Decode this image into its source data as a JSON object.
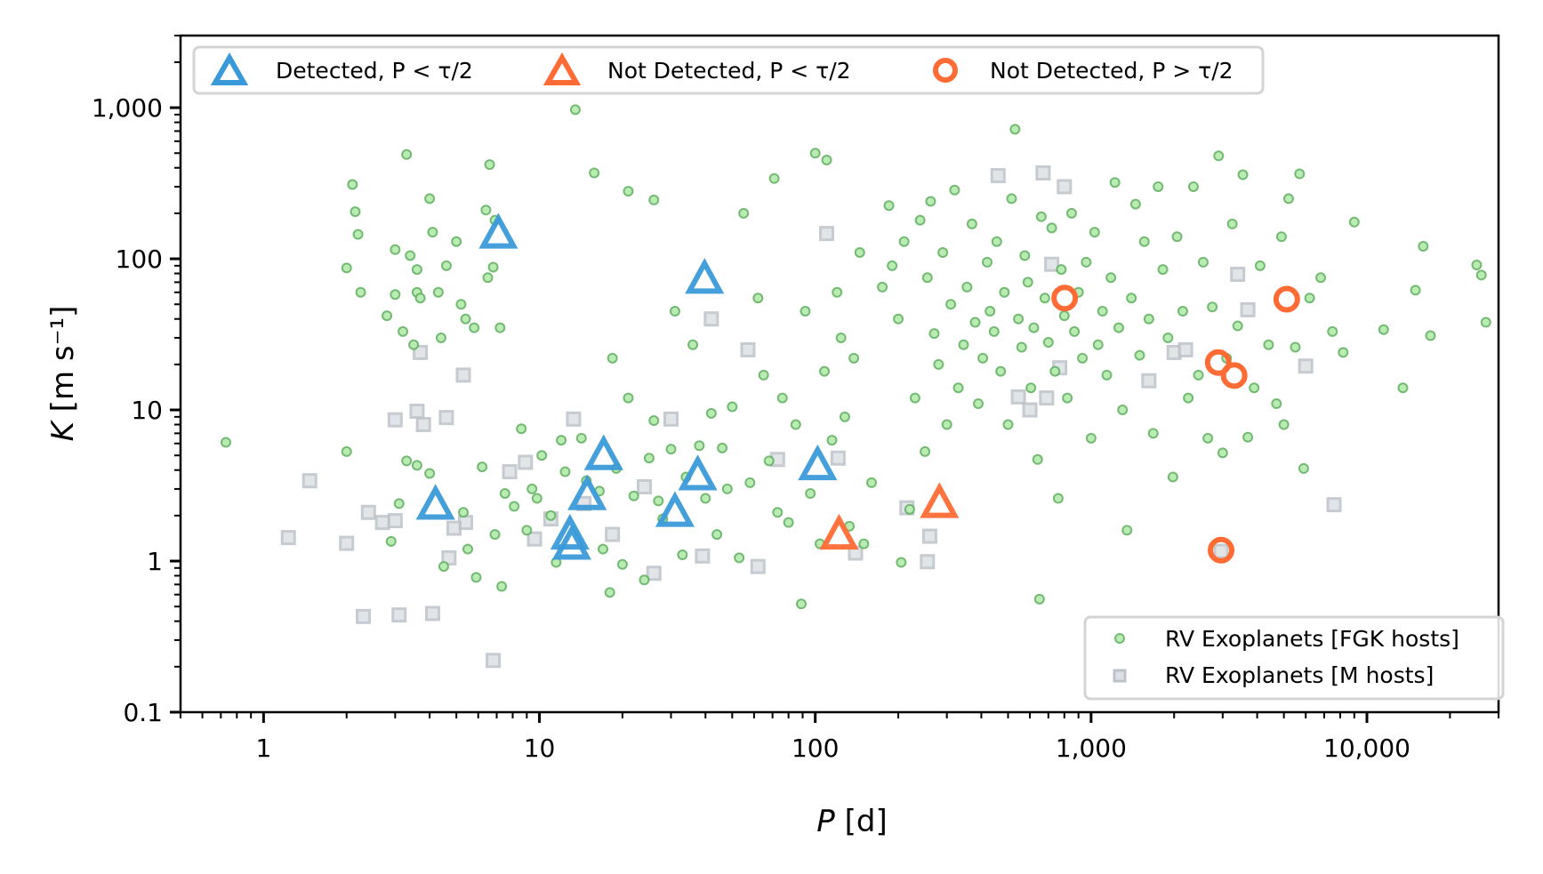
{
  "chart_data": {
    "type": "scatter",
    "title": "",
    "xlabel": "P [d]",
    "ylabel": "K [m s⁻¹]",
    "xscale": "log",
    "yscale": "log",
    "xlim": [
      0.5,
      30000
    ],
    "ylim": [
      0.1,
      3000
    ],
    "x_ticks": [
      {
        "value": 1,
        "label": "1"
      },
      {
        "value": 10,
        "label": "10"
      },
      {
        "value": 100,
        "label": "100"
      },
      {
        "value": 1000,
        "label": "1,000"
      },
      {
        "value": 10000,
        "label": "10,000"
      }
    ],
    "y_ticks": [
      {
        "value": 0.1,
        "label": "0.1"
      },
      {
        "value": 1,
        "label": "1"
      },
      {
        "value": 10,
        "label": "10"
      },
      {
        "value": 100,
        "label": "100"
      },
      {
        "value": 1000,
        "label": "1,000"
      }
    ],
    "grid": false,
    "legends": [
      {
        "placement": "top",
        "entries": [
          "Detected, P < τ/2",
          "Not Detected, P < τ/2",
          "Not Detected, P > τ/2"
        ]
      },
      {
        "placement": "lower-right",
        "entries": [
          "RV Exoplanets [FGK hosts]",
          "RV Exoplanets [M hosts]"
        ]
      }
    ],
    "colors": {
      "fgk_fill": "#b9ecb3",
      "fgk_edge": "#5aaa5a",
      "m_fill": "#cdd2d7",
      "m_edge": "#a9b0b7",
      "detected": "#3a9ad9",
      "not_detected": "#ff6b35"
    },
    "series": [
      {
        "name": "RV Exoplanets [FGK hosts]",
        "marker": "circle",
        "points": [
          [
            0.73,
            6.1
          ],
          [
            2.0,
            87
          ],
          [
            2.1,
            310
          ],
          [
            2.15,
            205
          ],
          [
            2.2,
            145
          ],
          [
            2.25,
            60
          ],
          [
            2.8,
            42
          ],
          [
            3.0,
            58
          ],
          [
            3.0,
            115
          ],
          [
            3.3,
            490
          ],
          [
            3.4,
            105
          ],
          [
            3.6,
            85
          ],
          [
            3.6,
            60
          ],
          [
            3.7,
            55
          ],
          [
            4.0,
            250
          ],
          [
            4.1,
            150
          ],
          [
            4.3,
            60
          ],
          [
            4.6,
            90
          ],
          [
            5.0,
            130
          ],
          [
            5.2,
            50
          ],
          [
            5.4,
            40
          ],
          [
            5.8,
            35
          ],
          [
            6.6,
            420
          ],
          [
            6.4,
            210
          ],
          [
            6.9,
            180
          ],
          [
            6.5,
            75
          ],
          [
            6.8,
            88
          ],
          [
            7.2,
            35
          ],
          [
            3.2,
            33
          ],
          [
            3.5,
            27
          ],
          [
            4.4,
            30
          ],
          [
            2.0,
            5.3
          ],
          [
            2.9,
            1.35
          ],
          [
            3.1,
            2.4
          ],
          [
            3.3,
            4.6
          ],
          [
            3.6,
            4.3
          ],
          [
            4.0,
            3.8
          ],
          [
            4.5,
            0.92
          ],
          [
            5.3,
            2.1
          ],
          [
            5.5,
            1.2
          ],
          [
            5.9,
            0.78
          ],
          [
            6.2,
            4.2
          ],
          [
            6.9,
            1.5
          ],
          [
            7.3,
            0.68
          ],
          [
            7.5,
            2.8
          ],
          [
            8.1,
            2.3
          ],
          [
            8.6,
            7.5
          ],
          [
            9.0,
            1.6
          ],
          [
            9.4,
            3.0
          ],
          [
            9.8,
            2.6
          ],
          [
            10.2,
            5.0
          ],
          [
            11.0,
            2.0
          ],
          [
            11.5,
            0.98
          ],
          [
            12.0,
            6.3
          ],
          [
            12.4,
            3.9
          ],
          [
            13.5,
            970
          ],
          [
            14.2,
            6.5
          ],
          [
            14.8,
            3.4
          ],
          [
            15.8,
            370
          ],
          [
            16.5,
            2.9
          ],
          [
            17.0,
            1.2
          ],
          [
            18.0,
            0.62
          ],
          [
            18.4,
            22
          ],
          [
            19.0,
            4.1
          ],
          [
            20.0,
            0.95
          ],
          [
            21,
            280
          ],
          [
            21,
            12
          ],
          [
            22,
            2.7
          ],
          [
            24,
            0.75
          ],
          [
            25,
            4.8
          ],
          [
            26,
            245
          ],
          [
            26,
            8.5
          ],
          [
            27,
            2.5
          ],
          [
            28,
            1.9
          ],
          [
            30,
            5.5
          ],
          [
            31,
            45
          ],
          [
            33,
            1.1
          ],
          [
            34,
            3.6
          ],
          [
            36,
            27
          ],
          [
            38,
            5.8
          ],
          [
            40,
            2.6
          ],
          [
            42,
            9.5
          ],
          [
            44,
            1.5
          ],
          [
            46,
            5.6
          ],
          [
            48,
            3.0
          ],
          [
            50,
            10.5
          ],
          [
            53,
            1.05
          ],
          [
            55,
            200
          ],
          [
            58,
            3.3
          ],
          [
            62,
            55
          ],
          [
            65,
            17
          ],
          [
            68,
            4.6
          ],
          [
            71,
            340
          ],
          [
            73,
            2.1
          ],
          [
            76,
            12
          ],
          [
            80,
            1.8
          ],
          [
            85,
            8
          ],
          [
            89,
            0.52
          ],
          [
            92,
            45
          ],
          [
            96,
            2.8
          ],
          [
            100,
            500
          ],
          [
            104,
            1.3
          ],
          [
            108,
            18
          ],
          [
            110,
            450
          ],
          [
            115,
            6.3
          ],
          [
            120,
            60
          ],
          [
            124,
            30
          ],
          [
            128,
            9
          ],
          [
            133,
            1.7
          ],
          [
            138,
            22
          ],
          [
            145,
            110
          ],
          [
            150,
            1.3
          ],
          [
            160,
            3.3
          ],
          [
            175,
            65
          ],
          [
            185,
            225
          ],
          [
            190,
            90
          ],
          [
            200,
            40
          ],
          [
            205,
            0.98
          ],
          [
            210,
            130
          ],
          [
            220,
            2.2
          ],
          [
            230,
            12
          ],
          [
            240,
            180
          ],
          [
            250,
            5.3
          ],
          [
            255,
            75
          ],
          [
            262,
            240
          ],
          [
            270,
            32
          ],
          [
            280,
            20
          ],
          [
            290,
            110
          ],
          [
            300,
            8
          ],
          [
            310,
            50
          ],
          [
            320,
            285
          ],
          [
            330,
            14
          ],
          [
            345,
            27
          ],
          [
            355,
            65
          ],
          [
            370,
            170
          ],
          [
            380,
            38
          ],
          [
            390,
            11
          ],
          [
            405,
            22
          ],
          [
            420,
            95
          ],
          [
            430,
            45
          ],
          [
            445,
            33
          ],
          [
            455,
            130
          ],
          [
            470,
            18
          ],
          [
            485,
            60
          ],
          [
            500,
            8
          ],
          [
            515,
            250
          ],
          [
            530,
            720
          ],
          [
            545,
            40
          ],
          [
            560,
            26
          ],
          [
            575,
            105
          ],
          [
            590,
            70
          ],
          [
            605,
            14
          ],
          [
            620,
            35
          ],
          [
            640,
            4.7
          ],
          [
            650,
            0.56
          ],
          [
            660,
            190
          ],
          [
            680,
            55
          ],
          [
            700,
            28
          ],
          [
            720,
            160
          ],
          [
            740,
            18
          ],
          [
            760,
            2.6
          ],
          [
            780,
            85
          ],
          [
            800,
            42
          ],
          [
            820,
            12
          ],
          [
            850,
            200
          ],
          [
            870,
            33
          ],
          [
            900,
            60
          ],
          [
            930,
            22
          ],
          [
            960,
            95
          ],
          [
            1000,
            6.5
          ],
          [
            1030,
            150
          ],
          [
            1060,
            27
          ],
          [
            1100,
            45
          ],
          [
            1140,
            17
          ],
          [
            1180,
            75
          ],
          [
            1220,
            320
          ],
          [
            1260,
            35
          ],
          [
            1300,
            10
          ],
          [
            1350,
            1.6
          ],
          [
            1400,
            55
          ],
          [
            1450,
            230
          ],
          [
            1500,
            23
          ],
          [
            1560,
            130
          ],
          [
            1620,
            40
          ],
          [
            1680,
            7
          ],
          [
            1750,
            300
          ],
          [
            1820,
            85
          ],
          [
            1900,
            30
          ],
          [
            1980,
            3.6
          ],
          [
            2050,
            140
          ],
          [
            2150,
            45
          ],
          [
            2250,
            12
          ],
          [
            2350,
            300
          ],
          [
            2450,
            17
          ],
          [
            2550,
            95
          ],
          [
            2650,
            6.5
          ],
          [
            2750,
            48
          ],
          [
            2900,
            480
          ],
          [
            3000,
            5.2
          ],
          [
            3100,
            22
          ],
          [
            3250,
            170
          ],
          [
            3400,
            36
          ],
          [
            3550,
            360
          ],
          [
            3700,
            6.6
          ],
          [
            3900,
            14
          ],
          [
            4100,
            90
          ],
          [
            4400,
            27
          ],
          [
            4700,
            11
          ],
          [
            4900,
            140
          ],
          [
            5000,
            8
          ],
          [
            5200,
            250
          ],
          [
            5500,
            26
          ],
          [
            5700,
            365
          ],
          [
            5900,
            4.1
          ],
          [
            6200,
            55
          ],
          [
            6800,
            75
          ],
          [
            7500,
            33
          ],
          [
            8200,
            24
          ],
          [
            9000,
            175
          ],
          [
            11500,
            34
          ],
          [
            13500,
            14
          ],
          [
            15000,
            62
          ],
          [
            16000,
            121
          ],
          [
            17000,
            31
          ],
          [
            25000,
            91
          ],
          [
            26000,
            78
          ],
          [
            27000,
            38
          ]
        ]
      },
      {
        "name": "RV Exoplanets [M hosts]",
        "marker": "square",
        "points": [
          [
            1.23,
            1.43
          ],
          [
            1.47,
            3.4
          ],
          [
            2.0,
            1.31
          ],
          [
            2.3,
            0.43
          ],
          [
            3.1,
            0.44
          ],
          [
            4.1,
            0.45
          ],
          [
            6.8,
            0.22
          ],
          [
            2.4,
            2.1
          ],
          [
            2.7,
            1.8
          ],
          [
            3.0,
            1.85
          ],
          [
            3.0,
            8.6
          ],
          [
            3.7,
            24
          ],
          [
            3.6,
            9.8
          ],
          [
            3.8,
            8
          ],
          [
            4.6,
            8.9
          ],
          [
            5.3,
            17
          ],
          [
            4.7,
            1.05
          ],
          [
            7.8,
            3.9
          ],
          [
            8.9,
            4.5
          ],
          [
            9.6,
            1.4
          ],
          [
            11,
            1.9
          ],
          [
            13.3,
            8.7
          ],
          [
            14.5,
            2.4
          ],
          [
            18.4,
            1.5
          ],
          [
            30,
            8.7
          ],
          [
            42,
            40
          ],
          [
            39,
            1.08
          ],
          [
            57,
            25
          ],
          [
            62,
            0.92
          ],
          [
            73,
            4.7
          ],
          [
            110,
            147
          ],
          [
            121,
            4.8
          ],
          [
            140,
            1.13
          ],
          [
            215,
            2.25
          ],
          [
            255,
            0.99
          ],
          [
            260,
            1.46
          ],
          [
            460,
            355
          ],
          [
            670,
            370
          ],
          [
            800,
            300
          ],
          [
            720,
            92
          ],
          [
            545,
            12.2
          ],
          [
            600,
            10
          ],
          [
            690,
            12
          ],
          [
            770,
            19
          ],
          [
            1620,
            15.6
          ],
          [
            2000,
            24
          ],
          [
            2200,
            25
          ],
          [
            2960,
            1.16
          ],
          [
            3400,
            79
          ],
          [
            3700,
            46
          ],
          [
            6000,
            19.5
          ],
          [
            7600,
            2.36
          ],
          [
            24,
            3.1
          ],
          [
            26,
            0.83
          ],
          [
            5.4,
            1.8
          ],
          [
            4.9,
            1.65
          ]
        ]
      },
      {
        "name": "Detected, P < τ/2",
        "marker": "triangle",
        "points": [
          [
            7.1,
            143
          ],
          [
            39.7,
            72
          ],
          [
            4.2,
            2.3
          ],
          [
            12.9,
            1.46
          ],
          [
            13.1,
            1.25
          ],
          [
            14.9,
            2.66
          ],
          [
            17.1,
            4.9
          ],
          [
            31,
            2.06
          ],
          [
            37.5,
            3.6
          ],
          [
            102,
            4.2
          ]
        ]
      },
      {
        "name": "Not Detected, P < τ/2",
        "marker": "triangle",
        "points": [
          [
            122,
            1.46
          ],
          [
            282,
            2.36
          ]
        ]
      },
      {
        "name": "Not Detected, P > τ/2",
        "marker": "ring",
        "points": [
          [
            802,
            55
          ],
          [
            5120,
            54
          ],
          [
            2890,
            20.6
          ],
          [
            3300,
            16.9
          ],
          [
            2960,
            1.18
          ]
        ]
      }
    ]
  }
}
